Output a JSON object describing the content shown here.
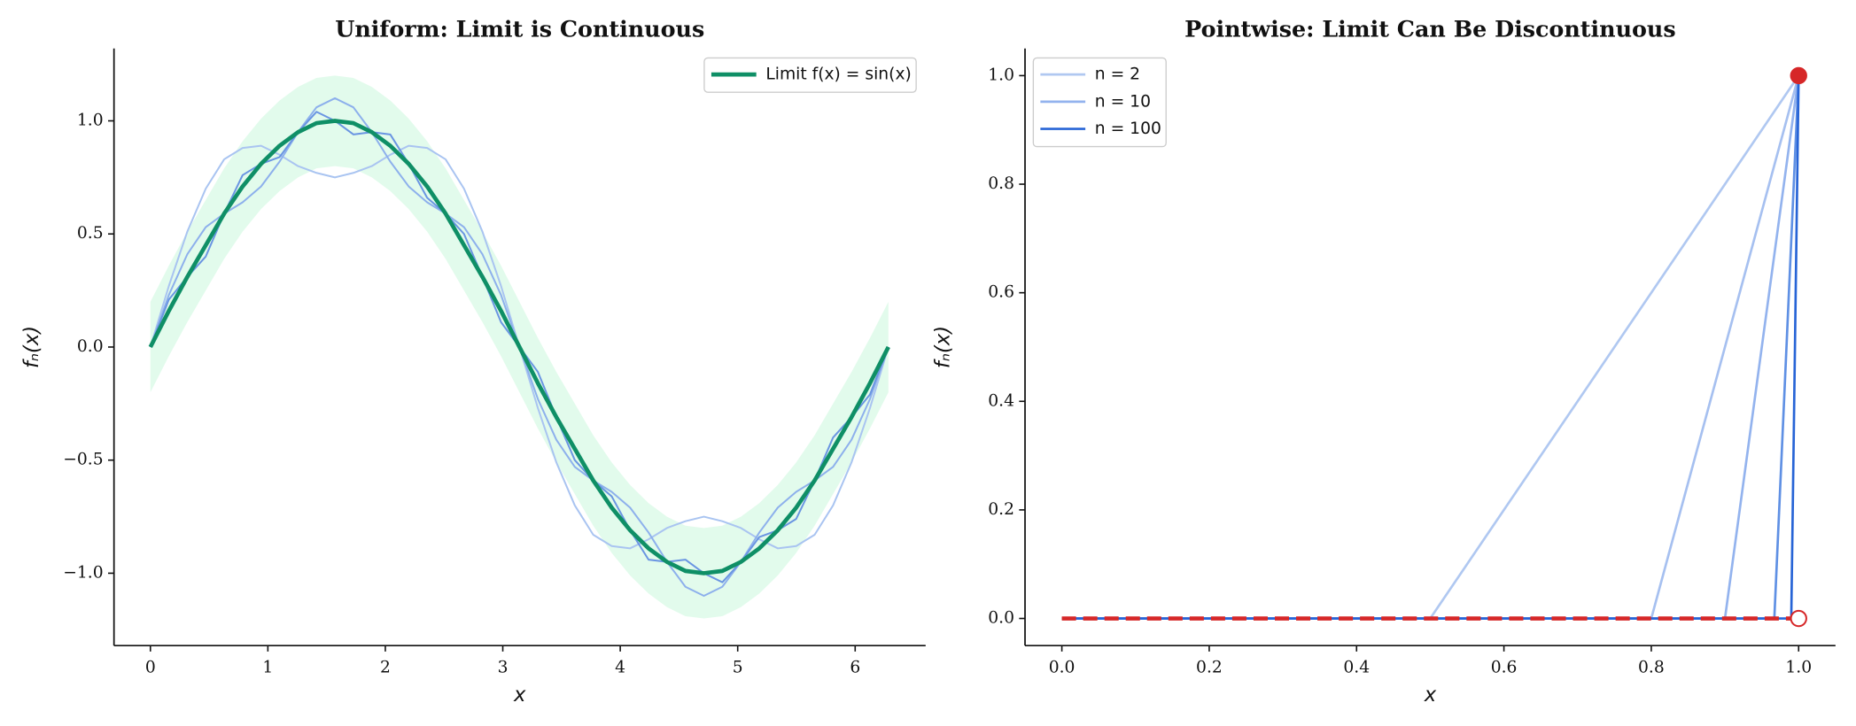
{
  "chart_data": [
    {
      "type": "line",
      "title": "Uniform: Limit is Continuous",
      "xlabel": "x",
      "ylabel": "fₙ(x)",
      "x": [
        0,
        0.157,
        0.314,
        0.471,
        0.628,
        0.785,
        0.942,
        1.1,
        1.257,
        1.414,
        1.571,
        1.728,
        1.885,
        2.042,
        2.199,
        2.356,
        2.513,
        2.67,
        2.827,
        2.985,
        3.142,
        3.299,
        3.456,
        3.613,
        3.77,
        3.927,
        4.084,
        4.241,
        4.398,
        4.555,
        4.712,
        4.869,
        5.027,
        5.184,
        5.341,
        5.498,
        5.655,
        5.812,
        5.969,
        6.126,
        6.283
      ],
      "band": {
        "color": "#e2fbec",
        "upper": [
          0.2,
          0.36,
          0.51,
          0.65,
          0.79,
          0.91,
          1.01,
          1.09,
          1.15,
          1.19,
          1.2,
          1.19,
          1.15,
          1.09,
          1.01,
          0.91,
          0.79,
          0.65,
          0.51,
          0.36,
          0.2,
          0.04,
          -0.11,
          -0.25,
          -0.39,
          -0.51,
          -0.61,
          -0.69,
          -0.75,
          -0.79,
          -0.8,
          -0.79,
          -0.75,
          -0.69,
          -0.61,
          -0.51,
          -0.39,
          -0.25,
          -0.11,
          0.04,
          0.2
        ],
        "lower": [
          -0.2,
          -0.04,
          0.11,
          0.25,
          0.39,
          0.51,
          0.61,
          0.69,
          0.75,
          0.79,
          0.8,
          0.79,
          0.75,
          0.69,
          0.61,
          0.51,
          0.39,
          0.25,
          0.11,
          -0.04,
          -0.2,
          -0.36,
          -0.51,
          -0.65,
          -0.79,
          -0.91,
          -1.01,
          -1.09,
          -1.15,
          -1.19,
          -1.2,
          -1.19,
          -1.15,
          -1.09,
          -1.01,
          -0.91,
          -0.79,
          -0.65,
          -0.51,
          -0.36,
          -0.2
        ]
      },
      "series": [
        {
          "color": "#a9c4f1",
          "width": 1.5,
          "values": [
            0,
            0.27,
            0.51,
            0.7,
            0.83,
            0.88,
            0.89,
            0.85,
            0.8,
            0.77,
            0.75,
            0.77,
            0.8,
            0.85,
            0.89,
            0.88,
            0.83,
            0.7,
            0.51,
            0.27,
            0,
            -0.27,
            -0.51,
            -0.7,
            -0.83,
            -0.88,
            -0.89,
            -0.85,
            -0.8,
            -0.77,
            -0.75,
            -0.77,
            -0.8,
            -0.85,
            -0.89,
            -0.88,
            -0.83,
            -0.7,
            -0.51,
            -0.27,
            0
          ]
        },
        {
          "color": "#8db0ec",
          "width": 1.5,
          "values": [
            0,
            0.23,
            0.41,
            0.53,
            0.59,
            0.64,
            0.71,
            0.82,
            0.95,
            1.06,
            1.1,
            1.06,
            0.95,
            0.82,
            0.71,
            0.64,
            0.59,
            0.53,
            0.41,
            0.23,
            0,
            -0.23,
            -0.41,
            -0.53,
            -0.59,
            -0.64,
            -0.71,
            -0.82,
            -0.95,
            -1.06,
            -1.1,
            -1.06,
            -0.95,
            -0.82,
            -0.71,
            -0.64,
            -0.59,
            -0.53,
            -0.41,
            -0.23,
            0
          ]
        },
        {
          "color": "#6a95e2",
          "width": 1.5,
          "values": [
            0,
            0.21,
            0.31,
            0.4,
            0.59,
            0.76,
            0.81,
            0.84,
            0.95,
            1.04,
            1,
            0.94,
            0.95,
            0.94,
            0.81,
            0.66,
            0.59,
            0.5,
            0.31,
            0.11,
            0,
            -0.11,
            -0.31,
            -0.5,
            -0.59,
            -0.66,
            -0.81,
            -0.94,
            -0.95,
            -0.94,
            -1,
            -1.04,
            -0.95,
            -0.84,
            -0.81,
            -0.76,
            -0.59,
            -0.4,
            -0.31,
            -0.21,
            0
          ]
        },
        {
          "name": "Limit f(x) = sin(x)",
          "color": "#0f8f66",
          "width": 3.5,
          "values": [
            0,
            0.16,
            0.31,
            0.45,
            0.59,
            0.71,
            0.81,
            0.89,
            0.95,
            0.99,
            1,
            0.99,
            0.95,
            0.89,
            0.81,
            0.71,
            0.59,
            0.45,
            0.31,
            0.16,
            0,
            -0.16,
            -0.31,
            -0.45,
            -0.59,
            -0.71,
            -0.81,
            -0.89,
            -0.95,
            -0.99,
            -1,
            -0.99,
            -0.95,
            -0.89,
            -0.81,
            -0.71,
            -0.59,
            -0.45,
            -0.31,
            -0.16,
            0
          ]
        }
      ],
      "xlim": [
        -0.31,
        6.6
      ],
      "xticks": [
        0,
        1,
        2,
        3,
        4,
        5,
        6
      ],
      "ylim": [
        -1.32,
        1.32
      ],
      "yticks": [
        {
          "value": -1,
          "label": "−1.0"
        },
        {
          "value": -0.5,
          "label": "−0.5"
        },
        {
          "value": 0,
          "label": "0.0"
        },
        {
          "value": 0.5,
          "label": "0.5"
        },
        {
          "value": 1,
          "label": "1.0"
        }
      ],
      "legend": "upper right"
    },
    {
      "type": "line",
      "title": "Pointwise: Limit Can Be Discontinuous",
      "xlabel": "x",
      "ylabel": "fₙ(x)",
      "series": [
        {
          "name": "n = 2",
          "color": "#b0c8f1",
          "width": 2,
          "x": [
            0,
            0.5,
            1
          ],
          "values": [
            0,
            0,
            1
          ]
        },
        {
          "color": "#a6c0f0",
          "width": 2,
          "x": [
            0,
            0.8,
            1
          ],
          "values": [
            0,
            0,
            1
          ]
        },
        {
          "name": "n = 10",
          "color": "#93b3ee",
          "width": 2,
          "x": [
            0,
            0.9,
            1
          ],
          "values": [
            0,
            0,
            1
          ]
        },
        {
          "color": "#5f90e4",
          "width": 2,
          "x": [
            0,
            0.967,
            1
          ],
          "values": [
            0,
            0,
            1
          ]
        },
        {
          "name": "n = 100",
          "color": "#2764d6",
          "width": 2,
          "x": [
            0,
            0.99,
            1
          ],
          "values": [
            0,
            0,
            1
          ]
        }
      ],
      "limit": {
        "color": "#d62728",
        "x": [
          0,
          1
        ],
        "values": [
          0,
          0
        ]
      },
      "points": [
        {
          "x": 1,
          "y": 1,
          "filled": true
        },
        {
          "x": 1,
          "y": 0,
          "filled": false
        }
      ],
      "xlim": [
        -0.05,
        1.05
      ],
      "xticks": [
        {
          "value": 0,
          "label": "0.0"
        },
        {
          "value": 0.2,
          "label": "0.2"
        },
        {
          "value": 0.4,
          "label": "0.4"
        },
        {
          "value": 0.6,
          "label": "0.6"
        },
        {
          "value": 0.8,
          "label": "0.8"
        },
        {
          "value": 1,
          "label": "1.0"
        }
      ],
      "ylim": [
        -0.05,
        1.05
      ],
      "yticks": [
        {
          "value": 0,
          "label": "0.0"
        },
        {
          "value": 0.2,
          "label": "0.2"
        },
        {
          "value": 0.4,
          "label": "0.4"
        },
        {
          "value": 0.6,
          "label": "0.6"
        },
        {
          "value": 0.8,
          "label": "0.8"
        },
        {
          "value": 1,
          "label": "1.0"
        }
      ],
      "legend": "upper left"
    }
  ]
}
